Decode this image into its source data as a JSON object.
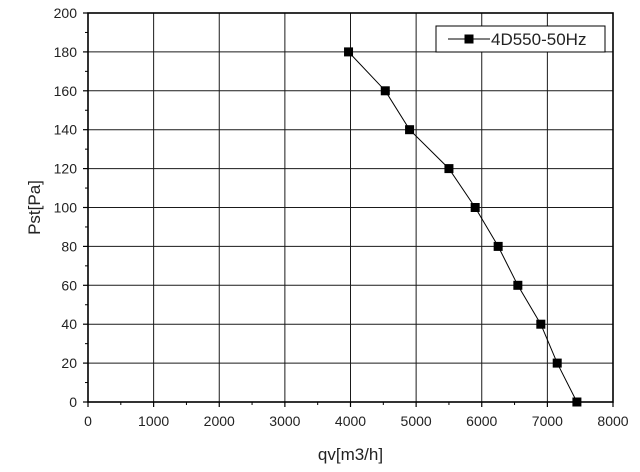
{
  "chart_data": {
    "type": "line",
    "title": "",
    "xlabel": "qv[m3/h]",
    "ylabel": "Pst[Pa]",
    "xlim": [
      0,
      8000
    ],
    "ylim": [
      0,
      200
    ],
    "x_ticks": [
      "0",
      "1000",
      "2000",
      "3000",
      "4000",
      "5000",
      "6000",
      "7000",
      "8000"
    ],
    "y_ticks": [
      "0",
      "20",
      "40",
      "60",
      "80",
      "100",
      "120",
      "140",
      "160",
      "180",
      "200"
    ],
    "grid": true,
    "legend_position": "top-right",
    "series": [
      {
        "name": "4D550-50Hz",
        "marker": "square",
        "color": "#000000",
        "x": [
          3970,
          4530,
          4900,
          5500,
          5900,
          6250,
          6550,
          6900,
          7150,
          7450
        ],
        "y": [
          180,
          160,
          140,
          120,
          100,
          80,
          60,
          40,
          20,
          0
        ]
      }
    ]
  }
}
